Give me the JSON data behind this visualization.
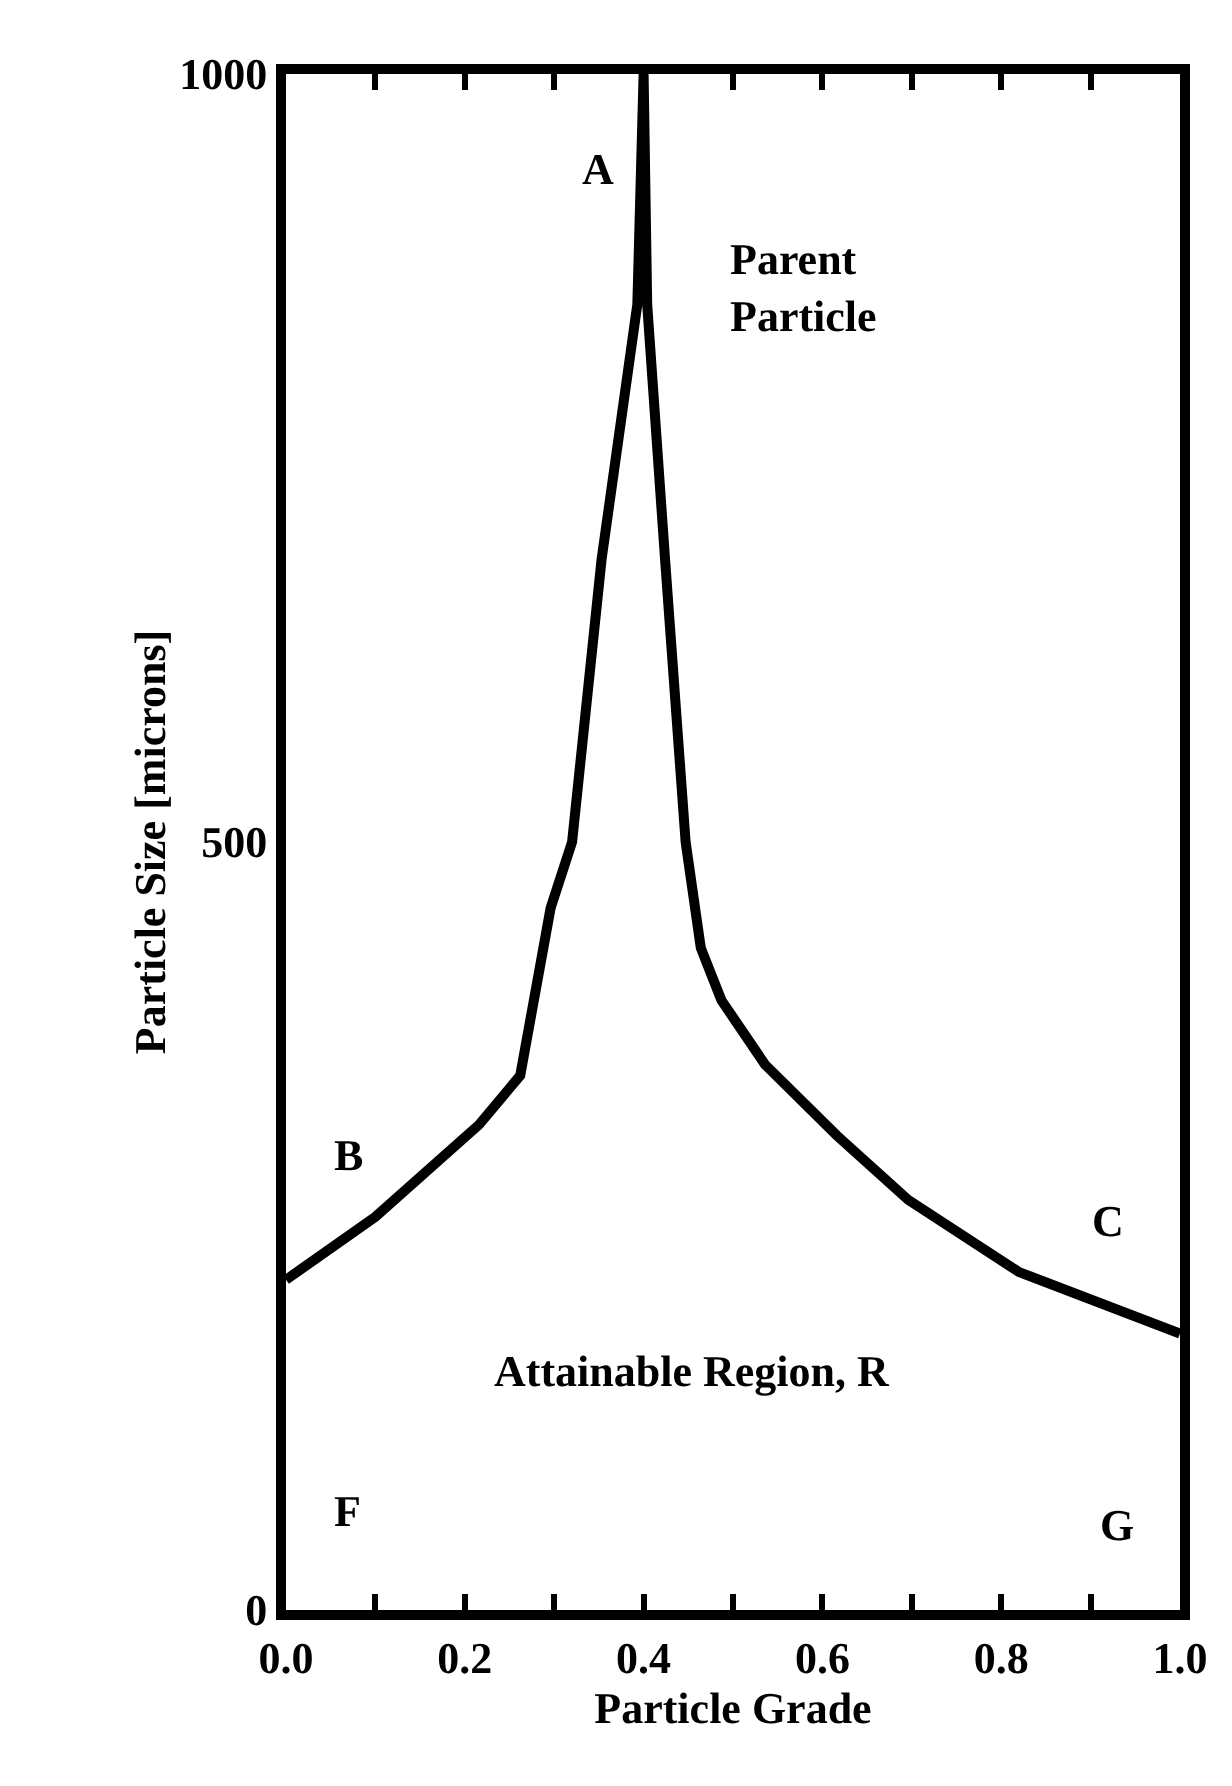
{
  "chart_data": {
    "type": "line",
    "xlabel": "Particle Grade",
    "ylabel": "Particle Size [microns]",
    "x": [
      0.0,
      0.1,
      0.216,
      0.262,
      0.296,
      0.32,
      0.353,
      0.393,
      0.4,
      0.404,
      0.424,
      0.447,
      0.464,
      0.487,
      0.536,
      0.616,
      0.696,
      0.82,
      1.0
    ],
    "series": [
      {
        "color": "#000000",
        "values": [
          215,
          256,
          316,
          348,
          457,
          500,
          684,
          850,
          1000,
          850,
          684,
          500,
          431,
          397,
          355,
          309,
          267,
          220,
          180
        ]
      }
    ],
    "xlim": [
      0,
      1
    ],
    "ylim": [
      0,
      1000
    ],
    "xticks": [
      {
        "value": 0.0,
        "label": "0.0"
      },
      {
        "value": 0.1,
        "label": null
      },
      {
        "value": 0.2,
        "label": "0.2"
      },
      {
        "value": 0.3,
        "label": null
      },
      {
        "value": 0.4,
        "label": "0.4"
      },
      {
        "value": 0.5,
        "label": null
      },
      {
        "value": 0.6,
        "label": "0.6"
      },
      {
        "value": 0.7,
        "label": null
      },
      {
        "value": 0.8,
        "label": "0.8"
      },
      {
        "value": 0.9,
        "label": null
      },
      {
        "value": 1.0,
        "label": "1.0"
      }
    ],
    "yticks": [
      0,
      500,
      1000
    ],
    "marker": "none",
    "line_style": "solid",
    "annotations": [
      "A",
      "Parent\nParticle",
      "B",
      "C",
      "Attainable Region, R",
      "F",
      "G"
    ]
  }
}
